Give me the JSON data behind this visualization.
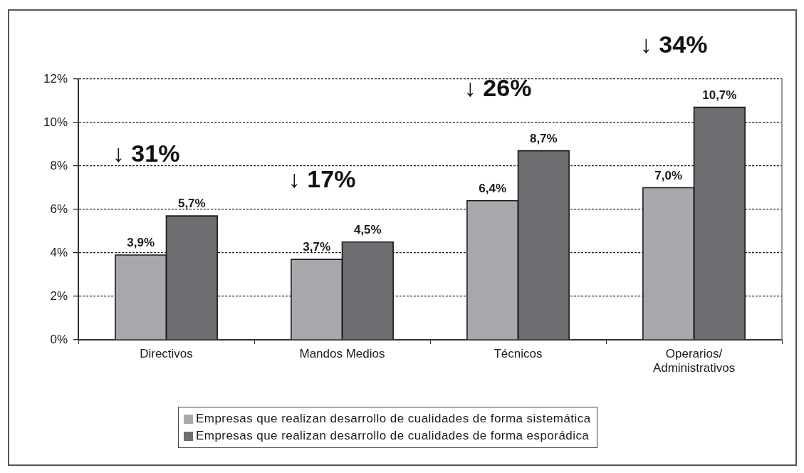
{
  "chart_data": {
    "type": "bar",
    "categories": [
      "Directivos",
      "Mandos Medios",
      "Técnicos",
      "Operarios/Administrativos"
    ],
    "series": [
      {
        "name": "Empresas que realizan desarrollo de cualidades de forma sistemática",
        "color": "#a8a8ac",
        "values": [
          3.9,
          3.7,
          6.4,
          7.0
        ],
        "value_labels": [
          "3,9%",
          "3,7%",
          "6,4%",
          "7,0%"
        ]
      },
      {
        "name": "Empresas que realizan desarrollo de cualidades de forma esporádica",
        "color": "#6c6c71",
        "values": [
          5.7,
          4.5,
          8.7,
          10.7
        ],
        "value_labels": [
          "5,7%",
          "4,5%",
          "8,7%",
          "10,7%"
        ]
      }
    ],
    "ylim": [
      0,
      12
    ],
    "yticks": [
      {
        "value": 0,
        "label": "0%"
      },
      {
        "value": 2,
        "label": "2%"
      },
      {
        "value": 4,
        "label": "4%"
      },
      {
        "value": 6,
        "label": "6%"
      },
      {
        "value": 8,
        "label": "8%"
      },
      {
        "value": 10,
        "label": "10%"
      },
      {
        "value": 12,
        "label": "12%"
      }
    ],
    "annotations": [
      "↓ 31%",
      "↓ 17%",
      "↓ 26%",
      "↓ 34%"
    ],
    "grid": "y",
    "legend": "bottom"
  }
}
